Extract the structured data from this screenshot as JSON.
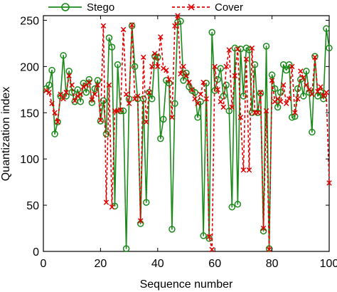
{
  "chart_data": {
    "type": "line",
    "title": "",
    "xlabel": "Sequence number",
    "ylabel": "Quantization index",
    "xlim": [
      0,
      100
    ],
    "ylim": [
      0,
      255
    ],
    "xticks": [
      "0",
      "20",
      "40",
      "60",
      "80",
      "100"
    ],
    "yticks": [
      "0",
      "50",
      "100",
      "150",
      "200",
      "250"
    ],
    "grid": false,
    "legend_position": "top",
    "x": [
      1,
      2,
      3,
      4,
      5,
      6,
      7,
      8,
      9,
      10,
      11,
      12,
      13,
      14,
      15,
      16,
      17,
      18,
      19,
      20,
      21,
      22,
      23,
      24,
      25,
      26,
      27,
      28,
      29,
      30,
      31,
      32,
      33,
      34,
      35,
      36,
      37,
      38,
      39,
      40,
      41,
      42,
      43,
      44,
      45,
      46,
      47,
      48,
      49,
      50,
      51,
      52,
      53,
      54,
      55,
      56,
      57,
      58,
      59,
      60,
      61,
      62,
      63,
      64,
      65,
      66,
      67,
      68,
      69,
      70,
      71,
      72,
      73,
      74,
      75,
      76,
      77,
      78,
      79,
      80,
      81,
      82,
      83,
      84,
      85,
      86,
      87,
      88,
      89,
      90,
      91,
      92,
      93,
      94,
      95,
      96,
      97,
      98,
      99,
      100
    ],
    "series": [
      {
        "name": "Stego",
        "color": "#1a8a1a",
        "line_style": "solid",
        "marker": "circle",
        "values": [
          176,
          180,
          196,
          127,
          140,
          168,
          212,
          168,
          195,
          172,
          162,
          175,
          162,
          182,
          172,
          186,
          161,
          176,
          185,
          141,
          163,
          127,
          231,
          221,
          49,
          202,
          152,
          152,
          3,
          165,
          244,
          200,
          165,
          30,
          165,
          53,
          172,
          165,
          211,
          210,
          122,
          143,
          185,
          182,
          24,
          160,
          248,
          249,
          185,
          193,
          178,
          174,
          172,
          145,
          162,
          17,
          182,
          14,
          237,
          174,
          186,
          198,
          168,
          180,
          152,
          48,
          220,
          51,
          219,
          168,
          220,
          218,
          150,
          202,
          150,
          171,
          22,
          222,
          3,
          191,
          176,
          156,
          172,
          202,
          196,
          202,
          145,
          146,
          176,
          186,
          168,
          195,
          172,
          129,
          211,
          168,
          172,
          165,
          241,
          220
        ]
      },
      {
        "name": "Cover",
        "color": "#e00000",
        "line_style": "dashed",
        "marker": "x",
        "values": [
          174,
          172,
          160,
          150,
          140,
          170,
          165,
          172,
          190,
          180,
          163,
          168,
          170,
          178,
          180,
          183,
          164,
          170,
          180,
          142,
          244,
          53,
          180,
          48,
          152,
          152,
          153,
          240,
          170,
          160,
          245,
          165,
          168,
          33,
          210,
          140,
          172,
          200,
          214,
          200,
          232,
          198,
          196,
          186,
          145,
          244,
          255,
          192,
          200,
          190,
          183,
          175,
          165,
          160,
          170,
          183,
          165,
          16,
          2,
          200,
          175,
          162,
          156,
          200,
          218,
          156,
          190,
          219,
          145,
          88,
          208,
          88,
          220,
          150,
          150,
          172,
          25,
          152,
          2,
          185,
          162,
          165,
          162,
          180,
          160,
          165,
          200,
          150,
          165,
          195,
          188,
          180,
          175,
          170,
          210,
          173,
          178,
          168,
          172,
          74
        ]
      }
    ]
  }
}
